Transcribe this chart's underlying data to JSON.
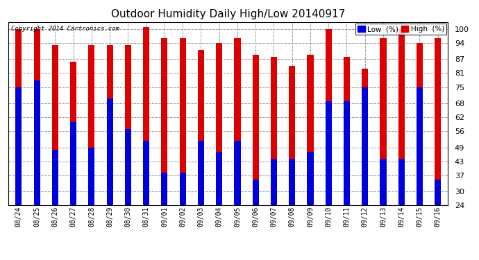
{
  "title": "Outdoor Humidity Daily High/Low 20140917",
  "copyright_text": "Copyright 2014 Cartronics.com",
  "legend_low": "Low  (%)",
  "legend_high": "High  (%)",
  "low_color": "#0000dd",
  "high_color": "#dd0000",
  "background_color": "#ffffff",
  "grid_color": "#999999",
  "ylim_min": 24,
  "ylim_max": 103,
  "yticks": [
    24,
    30,
    37,
    43,
    49,
    56,
    62,
    68,
    75,
    81,
    87,
    94,
    100
  ],
  "dates": [
    "08/24",
    "08/25",
    "08/26",
    "08/27",
    "08/28",
    "08/29",
    "08/30",
    "08/31",
    "09/01",
    "09/02",
    "09/03",
    "09/04",
    "09/05",
    "09/06",
    "09/07",
    "09/08",
    "09/09",
    "09/10",
    "09/11",
    "09/12",
    "09/13",
    "09/14",
    "09/15",
    "09/16"
  ],
  "high_values": [
    100,
    100,
    93,
    86,
    93,
    93,
    93,
    101,
    96,
    96,
    91,
    94,
    96,
    89,
    88,
    84,
    89,
    100,
    88,
    83,
    96,
    100,
    94,
    96
  ],
  "low_values": [
    75,
    78,
    48,
    60,
    49,
    70,
    57,
    52,
    38,
    38,
    52,
    47,
    52,
    35,
    44,
    44,
    47,
    69,
    69,
    75,
    44,
    44,
    75,
    35
  ],
  "bar_width": 0.35,
  "title_fontsize": 11,
  "tick_fontsize": 8,
  "x_tick_fontsize": 7
}
